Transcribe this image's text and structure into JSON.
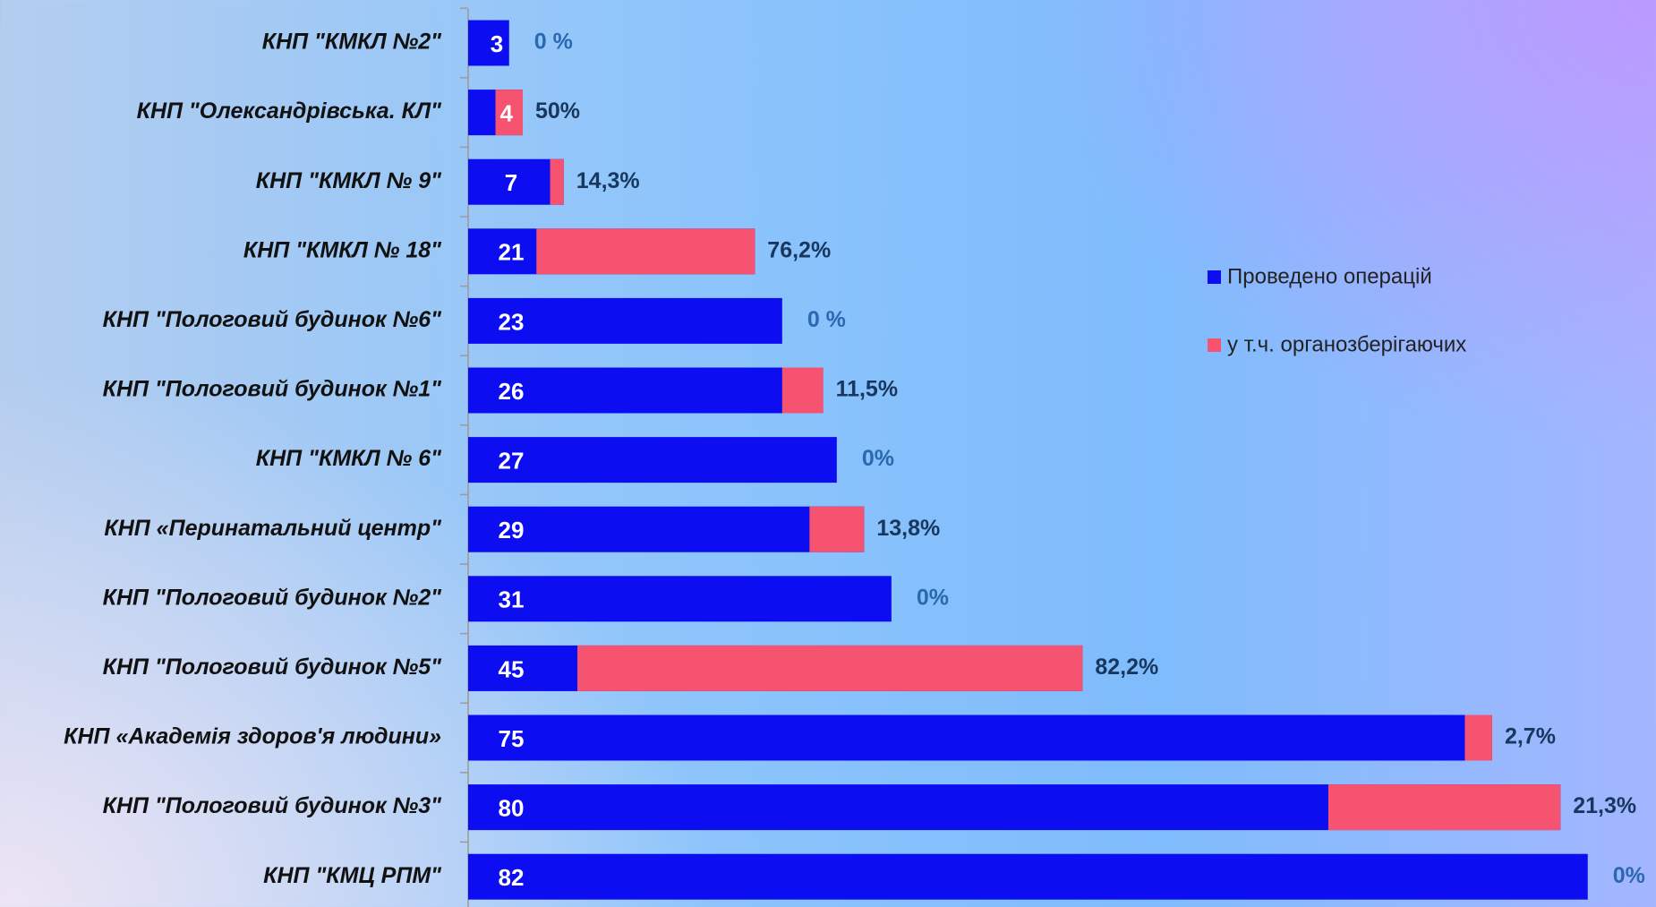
{
  "chart_data": {
    "type": "bar",
    "orientation": "horizontal",
    "categories": [
      "КНП \"КМКЛ №2\"",
      "КНП \"Олександрівська. КЛ\"",
      "КНП \"КМКЛ № 9\"",
      "КНП \"КМКЛ № 18\"",
      "КНП \"Пологовий будинок №6\"",
      "КНП \"Пологовий будинок №1\"",
      "КНП \"КМКЛ № 6\"",
      "КНП «Перинатальний центр\"",
      "КНП \"Пологовий будинок №2\"",
      "КНП \"Пологовий будинок №5\"",
      "КНП «Академія здоров'я людини»",
      "КНП \"Пологовий будинок №3\"",
      "КНП \"КМЦ  РПМ\""
    ],
    "series": [
      {
        "name": "Проведено операцій",
        "color": "#0d0df2",
        "values": [
          3,
          4,
          7,
          21,
          23,
          26,
          27,
          29,
          31,
          45,
          75,
          80,
          82
        ]
      },
      {
        "name": "у т.ч. органозберігаючих",
        "color": "#f5536f",
        "values": [
          0,
          2,
          1,
          16,
          0,
          3,
          0,
          4,
          0,
          37,
          2,
          17,
          0
        ]
      }
    ],
    "share_labels": [
      "0 %",
      "50%",
      "14,3%",
      "76,2%",
      "0 %",
      "11,5%",
      "0%",
      "13,8%",
      "0%",
      "82,2%",
      "2,7%",
      "21,3%",
      "0%"
    ],
    "xlim": [
      0,
      87
    ],
    "legend": "right"
  }
}
